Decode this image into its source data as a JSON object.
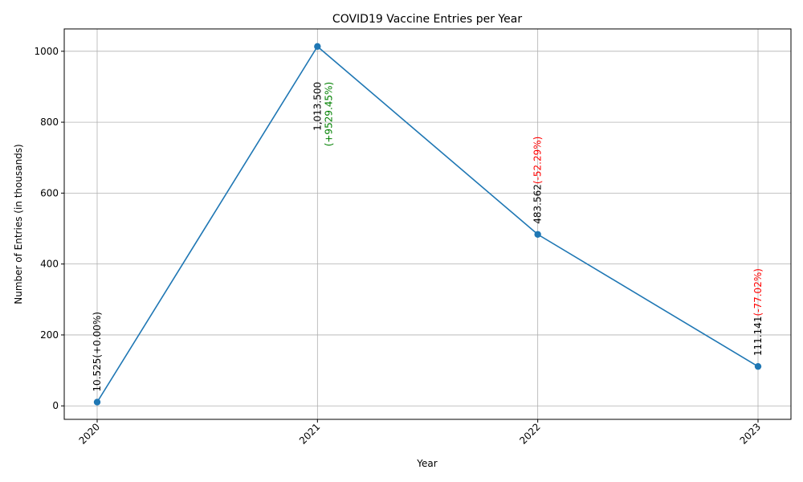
{
  "chart_data": {
    "type": "line",
    "title": "COVID19 Vaccine Entries per Year",
    "xlabel": "Year",
    "ylabel": "Number of Entries (in thousands)",
    "categories": [
      "2020",
      "2021",
      "2022",
      "2023"
    ],
    "values": [
      10.525,
      1013.5,
      483.562,
      111.141
    ],
    "ylim": [
      -38,
      1063
    ],
    "yticks": [
      0,
      200,
      400,
      600,
      800,
      1000
    ],
    "grid": true,
    "annotations": [
      {
        "value_text": "10.525",
        "change_text": "(+0.00%)",
        "change_color": "#000000"
      },
      {
        "value_text": "1,013.500",
        "change_text": "(+9529.45%)",
        "change_color": "#008000"
      },
      {
        "value_text": "483.562",
        "change_text": "(-52.29%)",
        "change_color": "#ff0000"
      },
      {
        "value_text": "111.141",
        "change_text": "(-77.02%)",
        "change_color": "#ff0000"
      }
    ],
    "line_color": "#1f77b4"
  }
}
